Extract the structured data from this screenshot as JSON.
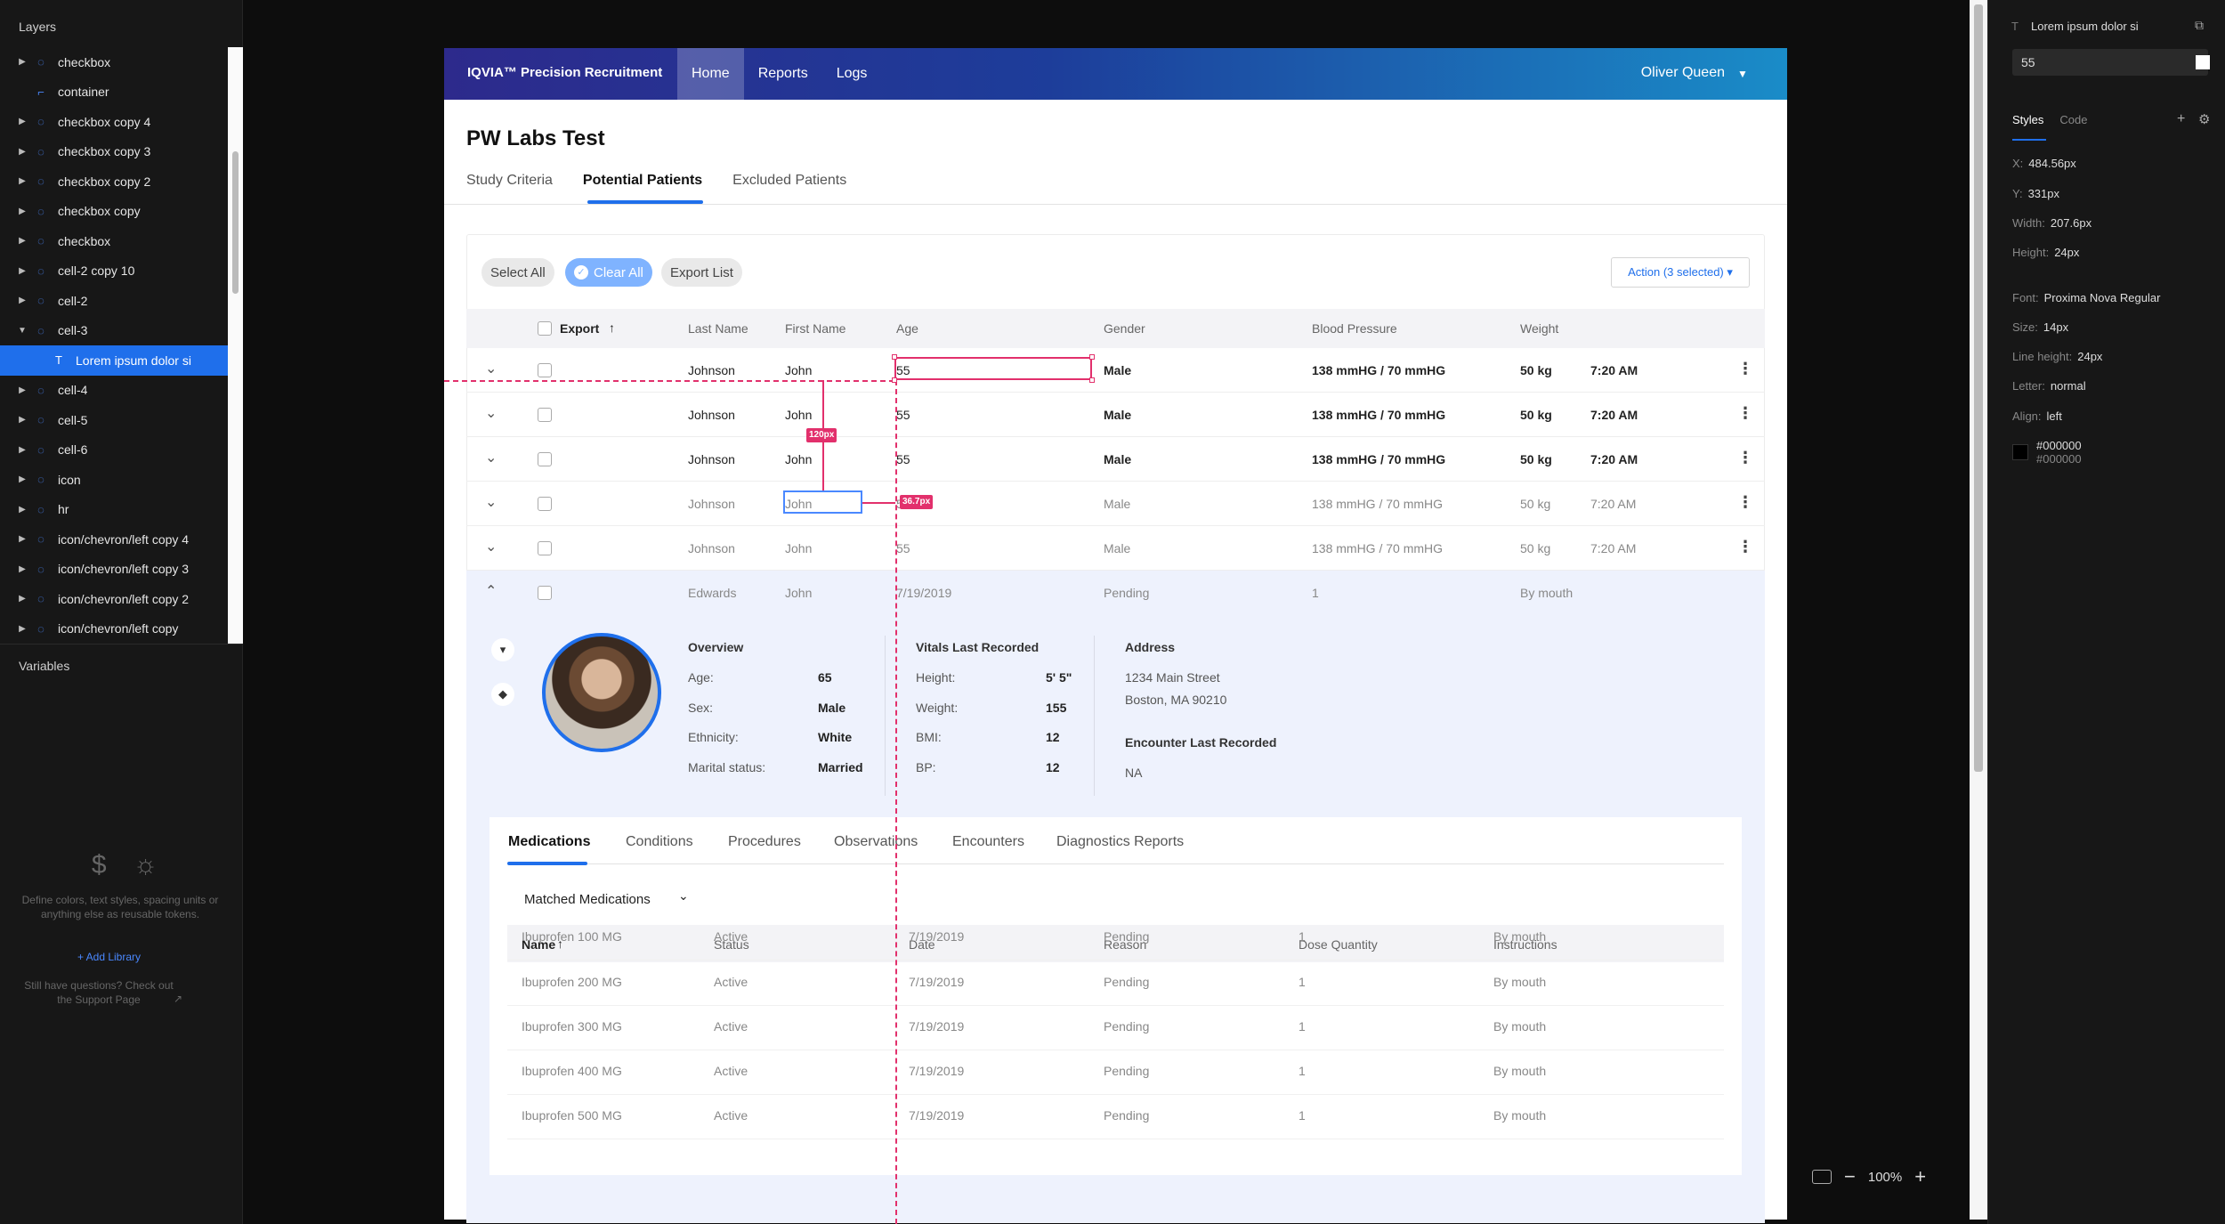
{
  "layers_panel": {
    "title": "Layers",
    "items": [
      {
        "name": "checkbox",
        "expand": "▶",
        "icon": "◌"
      },
      {
        "name": "container",
        "expand": "",
        "icon": "⌐"
      },
      {
        "name": "checkbox copy 4",
        "expand": "▶",
        "icon": "◌"
      },
      {
        "name": "checkbox copy 3",
        "expand": "▶",
        "icon": "◌"
      },
      {
        "name": "checkbox copy 2",
        "expand": "▶",
        "icon": "◌"
      },
      {
        "name": "checkbox copy",
        "expand": "▶",
        "icon": "◌"
      },
      {
        "name": "checkbox",
        "expand": "▶",
        "icon": "◌"
      },
      {
        "name": "cell-2 copy 10",
        "expand": "▶",
        "icon": "◌"
      },
      {
        "name": "cell-2",
        "expand": "▶",
        "icon": "◌"
      },
      {
        "name": "cell-3",
        "expand": "▼",
        "icon": "◌"
      },
      {
        "name": "Lorem ipsum dolor si",
        "expand": "",
        "icon": "T"
      },
      {
        "name": "cell-4",
        "expand": "▶",
        "icon": "◌"
      },
      {
        "name": "cell-5",
        "expand": "▶",
        "icon": "◌"
      },
      {
        "name": "cell-6",
        "expand": "▶",
        "icon": "◌"
      },
      {
        "name": "icon",
        "expand": "▶",
        "icon": "◌"
      },
      {
        "name": "hr",
        "expand": "▶",
        "icon": "◌"
      },
      {
        "name": "icon/chevron/left copy 4",
        "expand": "▶",
        "icon": "◌"
      },
      {
        "name": "icon/chevron/left copy 3",
        "expand": "▶",
        "icon": "◌"
      },
      {
        "name": "icon/chevron/left copy 2",
        "expand": "▶",
        "icon": "◌"
      },
      {
        "name": "icon/chevron/left copy",
        "expand": "▶",
        "icon": "◌"
      }
    ],
    "selected_index": 10
  },
  "variables_panel": {
    "title": "Variables",
    "icon_dollar": "$",
    "icon_sun": "☼",
    "description": "Define colors, text styles, spacing units or anything else as reusable tokens.",
    "add_library": "+ Add Library",
    "support_text": "Still have questions? Check out the Support Page",
    "support_icon": "↗"
  },
  "inspector": {
    "layer_icon": "T",
    "layer_name": "Lorem ipsum dolor si",
    "copy_icon": "⧉",
    "text_value": "55",
    "tabs": [
      "Styles",
      "Code"
    ],
    "plus_icon": "+",
    "gear_icon": "⚙",
    "props": [
      {
        "k": "X:",
        "v": "484.56px"
      },
      {
        "k": "Y:",
        "v": "331px"
      },
      {
        "k": "Width:",
        "v": "207.6px"
      },
      {
        "k": "Height:",
        "v": "24px"
      },
      {
        "k": "Font:",
        "v": "Proxima Nova Regular"
      },
      {
        "k": "Size:",
        "v": "14px"
      },
      {
        "k": "Line height:",
        "v": "24px"
      },
      {
        "k": "Letter:",
        "v": "normal"
      },
      {
        "k": "Align:",
        "v": "left"
      }
    ],
    "color_hex": "#000000",
    "color_hex2": "#000000"
  },
  "zoom": {
    "minus": "−",
    "level": "100%",
    "plus": "+"
  },
  "app": {
    "brand": "IQVIA™ Precision Recruitment",
    "nav": [
      "Home",
      "Reports",
      "Logs"
    ],
    "user": "Oliver Queen",
    "user_caret": "▼",
    "page_title": "PW Labs Test",
    "subtabs": [
      "Study Criteria",
      "Potential Patients",
      "Excluded Patients"
    ],
    "toolbar": {
      "select_all": "Select All",
      "clear_all": "Clear All",
      "clear_check": "✓",
      "export_list": "Export List",
      "action": "Action (3 selected) ▾"
    },
    "table": {
      "headers": [
        "Export",
        "Last Name",
        "First Name",
        "Age",
        "Gender",
        "Blood Pressure",
        "Weight"
      ],
      "sort_arrow": "↑",
      "rows": [
        {
          "chev": "⌄",
          "last": "Johnson",
          "first": "John",
          "age": "55",
          "gender": "Male",
          "bp": "138 mmHG / 70 mmHG",
          "weight": "50 kg",
          "time": "7:20 AM",
          "kebab": "⋮"
        },
        {
          "chev": "⌄",
          "last": "Johnson",
          "first": "John",
          "age": "55",
          "gender": "Male",
          "bp": "138 mmHG / 70 mmHG",
          "weight": "50 kg",
          "time": "7:20 AM",
          "kebab": "⋮"
        },
        {
          "chev": "⌄",
          "last": "Johnson",
          "first": "John",
          "age": "55",
          "gender": "Male",
          "bp": "138 mmHG / 70 mmHG",
          "weight": "50 kg",
          "time": "7:20 AM",
          "kebab": "⋮"
        },
        {
          "chev": "⌄",
          "last": "Johnson",
          "first": "John",
          "age": "55",
          "gender": "Male",
          "bp": "138 mmHG / 70 mmHG",
          "weight": "50 kg",
          "time": "7:20 AM",
          "kebab": "⋮"
        },
        {
          "chev": "⌄",
          "last": "Johnson",
          "first": "John",
          "age": "55",
          "gender": "Male",
          "bp": "138 mmHG / 70 mmHG",
          "weight": "50 kg",
          "time": "7:20 AM",
          "kebab": "⋮"
        },
        {
          "chev": "⌃",
          "last": "Edwards",
          "first": "John",
          "age": "7/19/2019",
          "gender": "Pending",
          "bp": "1",
          "weight": "By mouth",
          "time": "",
          "kebab": ""
        }
      ]
    },
    "detail": {
      "thumb_down_icon": "▾",
      "flag_icon": "◆",
      "overview_title": "Overview",
      "overview": [
        {
          "k": "Age:",
          "v": "65"
        },
        {
          "k": "Sex:",
          "v": "Male"
        },
        {
          "k": "Ethnicity:",
          "v": "White"
        },
        {
          "k": "Marital status:",
          "v": "Married"
        }
      ],
      "vitals_title": "Vitals Last Recorded",
      "vitals": [
        {
          "k": "Height:",
          "v": "5' 5\""
        },
        {
          "k": "Weight:",
          "v": "155"
        },
        {
          "k": "BMI:",
          "v": "12"
        },
        {
          "k": "BP:",
          "v": "12"
        }
      ],
      "address_title": "Address",
      "address_line1": "1234 Main Street",
      "address_line2": "Boston, MA 90210",
      "encounter_title": "Encounter Last Recorded",
      "encounter_value": "NA"
    },
    "inner_tabs": [
      "Medications",
      "Conditions",
      "Procedures",
      "Observations",
      "Encounters",
      "Diagnostics Reports"
    ],
    "matched": "Matched Medications",
    "matched_chev": "⌄",
    "med_headers": [
      "Name",
      "Status",
      "Date",
      "Reason",
      "Dose Quantity",
      "Instructions"
    ],
    "medications": [
      {
        "name": "Ibuprofen 100 MG",
        "status": "Active",
        "date": "7/19/2019",
        "reason": "Pending",
        "dose": "1",
        "instr": "By mouth"
      },
      {
        "name": "Ibuprofen 200 MG",
        "status": "Active",
        "date": "7/19/2019",
        "reason": "Pending",
        "dose": "1",
        "instr": "By mouth"
      },
      {
        "name": "Ibuprofen 300 MG",
        "status": "Active",
        "date": "7/19/2019",
        "reason": "Pending",
        "dose": "1",
        "instr": "By mouth"
      },
      {
        "name": "Ibuprofen 400 MG",
        "status": "Active",
        "date": "7/19/2019",
        "reason": "Pending",
        "dose": "1",
        "instr": "By mouth"
      },
      {
        "name": "Ibuprofen 500 MG",
        "status": "Active",
        "date": "7/19/2019",
        "reason": "Pending",
        "dose": "1",
        "instr": "By mouth"
      }
    ]
  },
  "measurements": {
    "vertical": "120px",
    "horizontal": "36.7px"
  }
}
